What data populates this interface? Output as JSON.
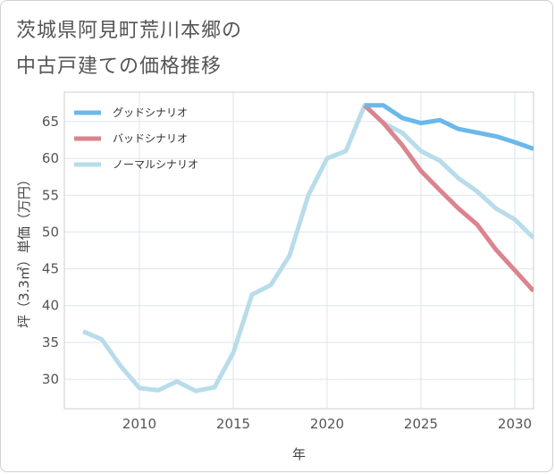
{
  "title_lines": [
    "茨城県阿見町荒川本郷の",
    "中古戸建ての価格推移"
  ],
  "chart_data": {
    "type": "line",
    "xlabel": "年",
    "ylabel": "坪（3.3㎡）単価（万円）",
    "xlim": [
      2006,
      2031
    ],
    "ylim": [
      26,
      69
    ],
    "xticks": [
      2010,
      2015,
      2020,
      2025,
      2030
    ],
    "yticks": [
      30,
      35,
      40,
      45,
      50,
      55,
      60,
      65
    ],
    "grid": true,
    "legend_position": "top-left",
    "series": [
      {
        "name": "グッドシナリオ",
        "color": "#6cb8ea",
        "x": [
          2022,
          2023,
          2024,
          2025,
          2026,
          2027,
          2028,
          2029,
          2030,
          2031
        ],
        "values": [
          67.2,
          67.2,
          65.5,
          64.8,
          65.2,
          64.0,
          63.5,
          63.0,
          62.2,
          61.3
        ]
      },
      {
        "name": "バッドシナリオ",
        "color": "#db848d",
        "x": [
          2022,
          2023,
          2024,
          2025,
          2026,
          2027,
          2028,
          2029,
          2030,
          2031
        ],
        "values": [
          67.2,
          64.8,
          61.8,
          58.3,
          55.7,
          53.2,
          51.0,
          47.6,
          44.8,
          42.0
        ]
      },
      {
        "name": "ノーマルシナリオ",
        "color": "#b8dcea",
        "x": [
          2007,
          2008,
          2009,
          2010,
          2011,
          2012,
          2013,
          2014,
          2015,
          2016,
          2017,
          2018,
          2019,
          2020,
          2021,
          2022,
          2023,
          2024,
          2025,
          2026,
          2027,
          2028,
          2029,
          2030,
          2031
        ],
        "values": [
          36.5,
          35.4,
          31.8,
          28.8,
          28.5,
          29.7,
          28.4,
          28.9,
          33.6,
          41.5,
          42.8,
          46.8,
          55.0,
          60.0,
          61.0,
          67.2,
          64.8,
          63.5,
          61.0,
          59.7,
          57.3,
          55.5,
          53.2,
          51.7,
          49.2
        ]
      }
    ]
  }
}
